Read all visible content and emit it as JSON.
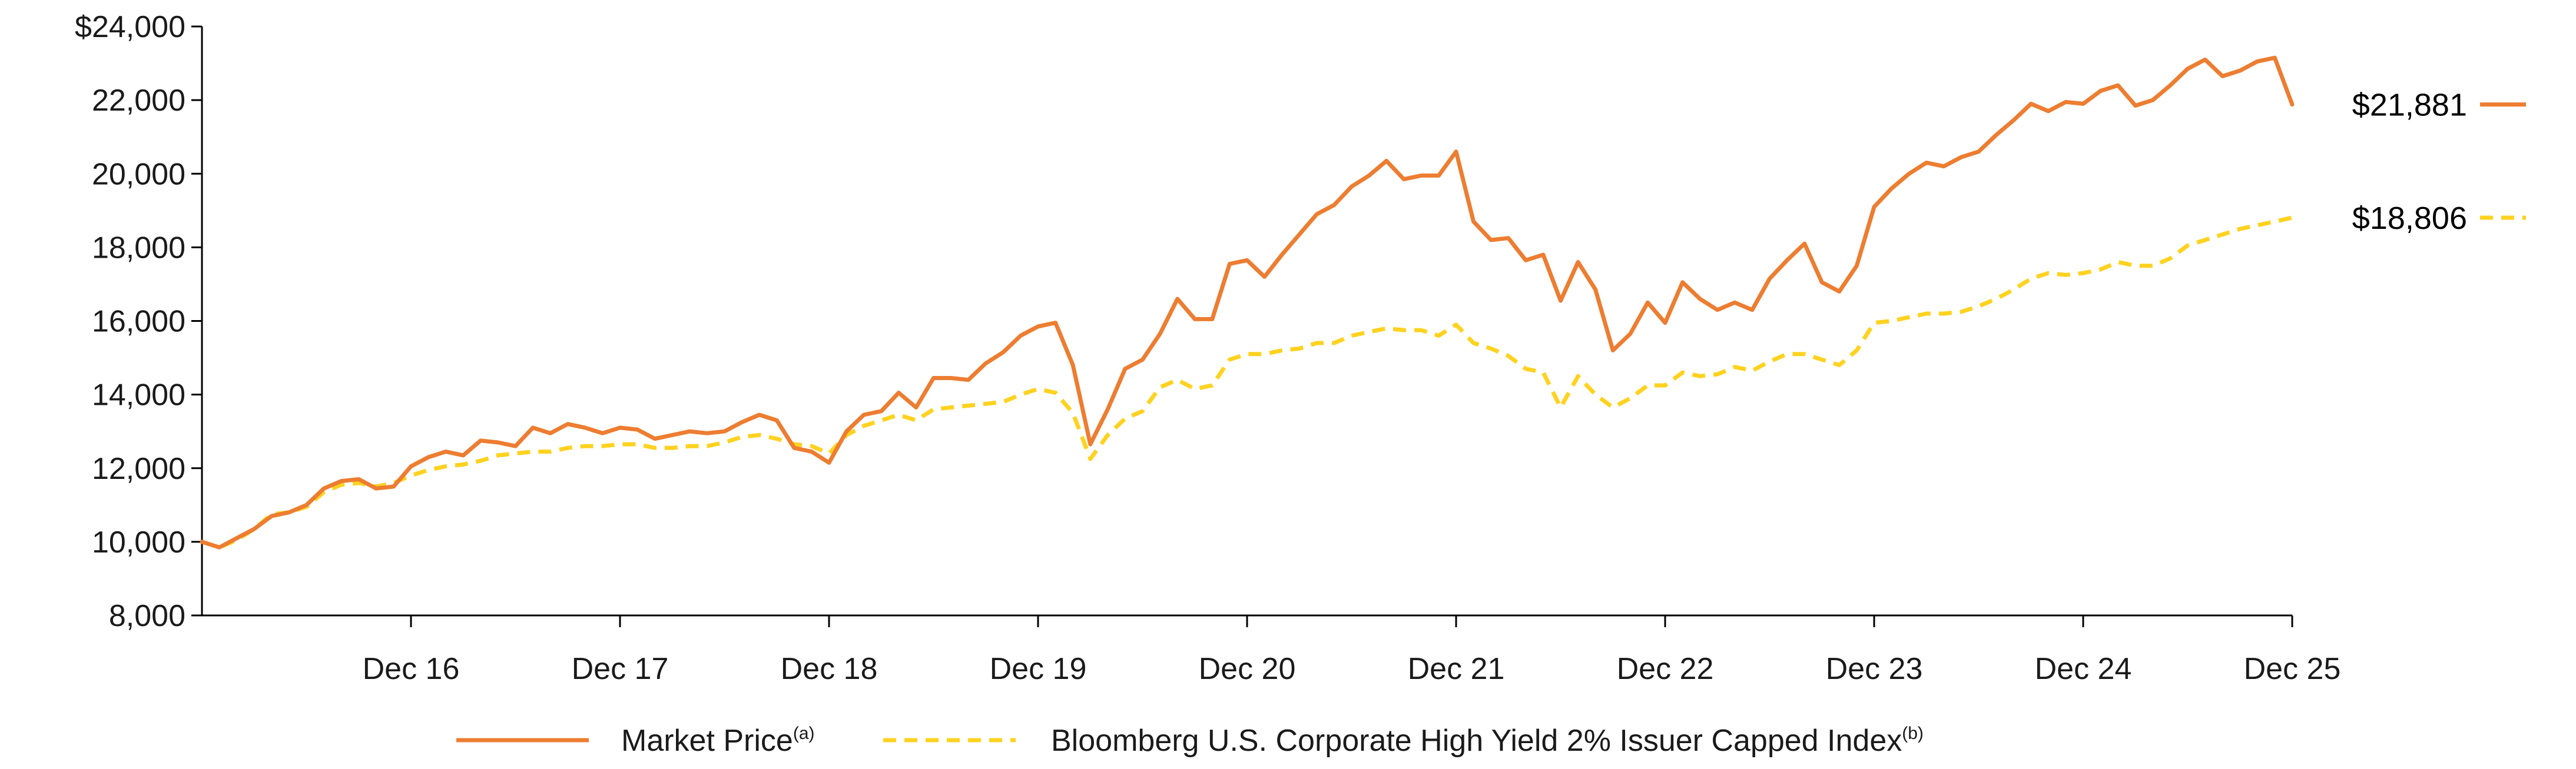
{
  "chart_data": {
    "type": "line",
    "title": "",
    "xlabel": "",
    "ylabel": "",
    "ylim": [
      8000,
      24000
    ],
    "y_ticks": [
      8000,
      10000,
      12000,
      14000,
      16000,
      18000,
      20000,
      22000,
      24000
    ],
    "y_tick_labels": [
      "8,000",
      "10,000",
      "12,000",
      "14,000",
      "16,000",
      "18,000",
      "20,000",
      "22,000",
      "$24,000"
    ],
    "x_range_months": [
      0,
      120
    ],
    "x_ticks": [
      {
        "month": 12,
        "label": "Dec 16"
      },
      {
        "month": 24,
        "label": "Dec 17"
      },
      {
        "month": 36,
        "label": "Dec 18"
      },
      {
        "month": 48,
        "label": "Dec 19"
      },
      {
        "month": 60,
        "label": "Dec 20"
      },
      {
        "month": 72,
        "label": "Dec 21"
      },
      {
        "month": 84,
        "label": "Dec 22"
      },
      {
        "month": 96,
        "label": "Dec 23"
      },
      {
        "month": 108,
        "label": "Dec 24"
      },
      {
        "month": 120,
        "label": "Dec 25"
      }
    ],
    "grid": false,
    "legend_position": "bottom-center",
    "series": [
      {
        "name": "Market Price",
        "name_sup": "(a)",
        "color": "#ED7D31",
        "style": "solid",
        "end_label": "$21,881",
        "values": [
          10000,
          9850,
          10100,
          10350,
          10700,
          10800,
          11000,
          11450,
          11650,
          11700,
          11450,
          11500,
          12050,
          12300,
          12450,
          12350,
          12750,
          12700,
          12600,
          13100,
          12950,
          13200,
          13100,
          12950,
          13100,
          13050,
          12800,
          12900,
          13000,
          12950,
          13000,
          13250,
          13450,
          13300,
          12550,
          12450,
          12150,
          13000,
          13450,
          13550,
          14050,
          13650,
          14450,
          14450,
          14400,
          14850,
          15150,
          15600,
          15850,
          15950,
          14800,
          12650,
          13600,
          14700,
          14950,
          15650,
          16600,
          16050,
          16050,
          17550,
          17650,
          17200,
          17800,
          18350,
          18900,
          19150,
          19650,
          19950,
          20350,
          19850,
          19950,
          19950,
          20600,
          18700,
          18200,
          18250,
          17650,
          17800,
          16550,
          17600,
          16850,
          15200,
          15650,
          16500,
          15950,
          17050,
          16600,
          16300,
          16500,
          16300,
          17150,
          17650,
          18100,
          17050,
          16800,
          17500,
          19100,
          19600,
          20000,
          20300,
          20200,
          20450,
          20600,
          21050,
          21450,
          21900,
          21700,
          21950,
          21900,
          22250,
          22400,
          21850,
          22000,
          22400,
          22850,
          23100,
          22650,
          22800,
          23050,
          23150,
          21881
        ]
      },
      {
        "name": "Bloomberg U.S. Corporate High Yield 2% Issuer Capped Index",
        "name_sup": "(b)",
        "color": "#FFD21F",
        "style": "dashed",
        "end_label": "$18,806",
        "values": [
          10000,
          9850,
          10050,
          10350,
          10750,
          10800,
          10950,
          11350,
          11550,
          11600,
          11500,
          11600,
          11800,
          11950,
          12050,
          12100,
          12200,
          12350,
          12400,
          12450,
          12450,
          12550,
          12600,
          12600,
          12650,
          12650,
          12550,
          12550,
          12600,
          12600,
          12700,
          12850,
          12900,
          12800,
          12650,
          12600,
          12400,
          12900,
          13150,
          13300,
          13450,
          13300,
          13600,
          13650,
          13700,
          13750,
          13800,
          14000,
          14150,
          14050,
          13500,
          12250,
          12900,
          13350,
          13550,
          14200,
          14400,
          14150,
          14250,
          14950,
          15100,
          15100,
          15200,
          15250,
          15400,
          15400,
          15600,
          15700,
          15800,
          15750,
          15750,
          15600,
          15900,
          15400,
          15250,
          15050,
          14700,
          14600,
          13650,
          14500,
          14000,
          13650,
          13900,
          14250,
          14250,
          14600,
          14500,
          14550,
          14750,
          14650,
          14900,
          15100,
          15100,
          14950,
          14800,
          15200,
          15950,
          16000,
          16100,
          16200,
          16200,
          16250,
          16400,
          16600,
          16850,
          17150,
          17300,
          17250,
          17300,
          17400,
          17600,
          17500,
          17500,
          17700,
          18050,
          18200,
          18350,
          18500,
          18600,
          18700,
          18806
        ]
      }
    ]
  }
}
